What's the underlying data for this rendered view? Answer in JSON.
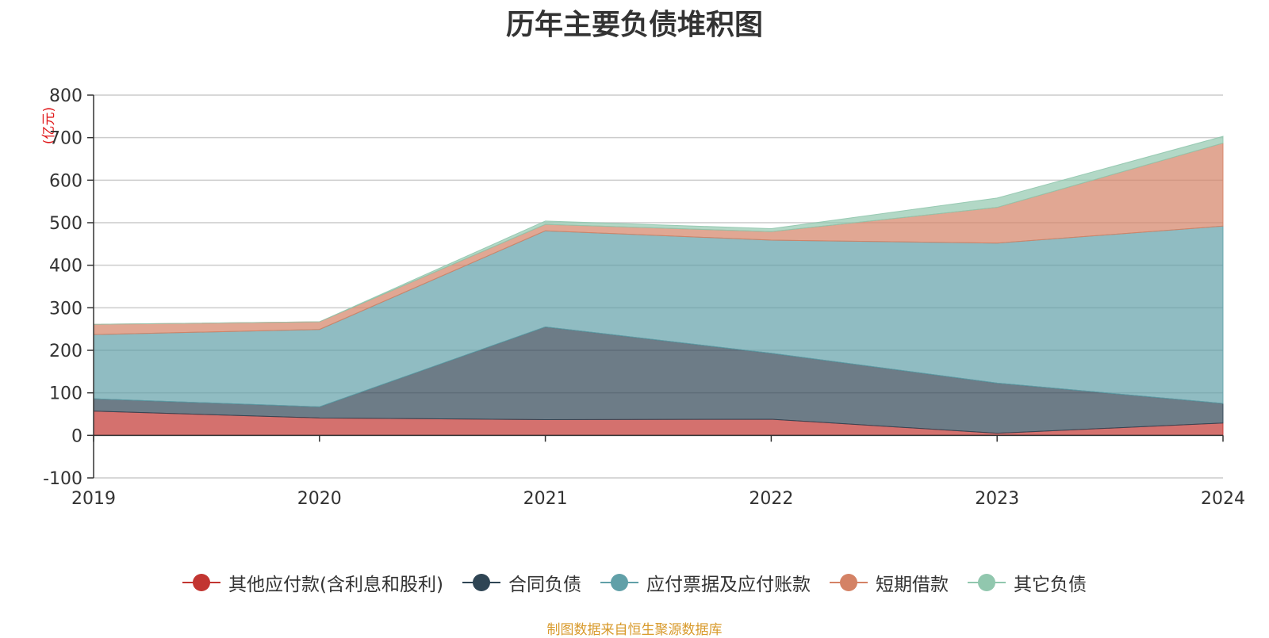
{
  "chart_data": {
    "type": "area",
    "stacked": true,
    "title": "历年主要负债堆积图",
    "unit_label": "(亿元)",
    "categories": [
      "2019",
      "2020",
      "2021",
      "2022",
      "2023",
      "2024"
    ],
    "ylim": [
      -100,
      800
    ],
    "yticks": [
      -100,
      0,
      100,
      200,
      300,
      400,
      500,
      600,
      700,
      800
    ],
    "grid": true,
    "legend_position": "bottom",
    "series": [
      {
        "name": "其他应付款(含利息和股利)",
        "color": "#c23531",
        "values": [
          57,
          41,
          37,
          38,
          5,
          29
        ]
      },
      {
        "name": "合同负债",
        "color": "#2f4554",
        "values": [
          29,
          26,
          218,
          155,
          118,
          46
        ]
      },
      {
        "name": "应付票据及应付账款",
        "color": "#61a0a8",
        "values": [
          151,
          182,
          226,
          266,
          329,
          417
        ]
      },
      {
        "name": "短期借款",
        "color": "#d48265",
        "values": [
          24,
          18,
          15,
          20,
          84,
          195
        ]
      },
      {
        "name": "其它负债",
        "color": "#91c7ae",
        "values": [
          0,
          0,
          8,
          7,
          22,
          16
        ]
      }
    ],
    "source_note": "制图数据来自恒生聚源数据库"
  }
}
